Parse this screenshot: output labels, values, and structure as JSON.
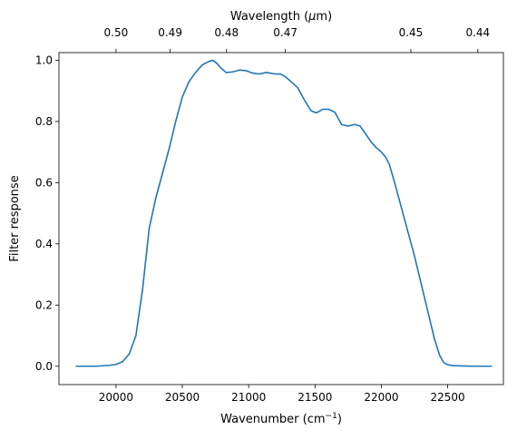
{
  "chart_data": {
    "type": "line",
    "xlabel": "Wavenumber (cm",
    "xlabel_sup": "−1",
    "xlabel_close": ")",
    "ylabel": "Filter response",
    "top_xlabel": "Wavelength (",
    "top_xlabel_mu": "μ",
    "top_xlabel_tail": "m)",
    "xlim": [
      19570,
      22920
    ],
    "ylim": [
      -0.06,
      1.025
    ],
    "xticks": [
      20000,
      20500,
      21000,
      21500,
      22000,
      22500
    ],
    "xtick_labels": [
      "20000",
      "20500",
      "21000",
      "21500",
      "22000",
      "22500"
    ],
    "yticks": [
      0.0,
      0.2,
      0.4,
      0.6,
      0.8,
      1.0
    ],
    "ytick_labels": [
      "0.0",
      "0.2",
      "0.4",
      "0.6",
      "0.8",
      "1.0"
    ],
    "top_xtick_labels": [
      "0.50",
      "0.49",
      "0.48",
      "0.47",
      "0.45",
      "0.44"
    ],
    "grid": false,
    "series": [
      {
        "color": "#1f77b4",
        "x": [
          19700,
          19850,
          19950,
          20000,
          20050,
          20100,
          20150,
          20200,
          20250,
          20300,
          20350,
          20400,
          20450,
          20500,
          20550,
          20600,
          20650,
          20700,
          20730,
          20760,
          20790,
          20830,
          20880,
          20930,
          20980,
          21030,
          21080,
          21130,
          21160,
          21200,
          21240,
          21280,
          21320,
          21370,
          21420,
          21470,
          21510,
          21560,
          21600,
          21650,
          21700,
          21750,
          21800,
          21840,
          21880,
          21920,
          21960,
          22000,
          22030,
          22060,
          22100,
          22150,
          22200,
          22250,
          22300,
          22350,
          22400,
          22440,
          22470,
          22500,
          22540,
          22600,
          22700,
          22830
        ],
        "values": [
          0.0,
          0.0,
          0.003,
          0.006,
          0.015,
          0.04,
          0.1,
          0.25,
          0.45,
          0.55,
          0.63,
          0.71,
          0.8,
          0.88,
          0.93,
          0.96,
          0.985,
          0.996,
          1.0,
          0.99,
          0.975,
          0.96,
          0.962,
          0.968,
          0.966,
          0.958,
          0.955,
          0.96,
          0.958,
          0.955,
          0.955,
          0.945,
          0.93,
          0.91,
          0.87,
          0.835,
          0.828,
          0.84,
          0.84,
          0.83,
          0.79,
          0.785,
          0.79,
          0.785,
          0.76,
          0.735,
          0.715,
          0.7,
          0.685,
          0.66,
          0.6,
          0.52,
          0.44,
          0.36,
          0.27,
          0.18,
          0.09,
          0.035,
          0.012,
          0.005,
          0.002,
          0.001,
          0.0,
          0.0
        ]
      }
    ]
  }
}
